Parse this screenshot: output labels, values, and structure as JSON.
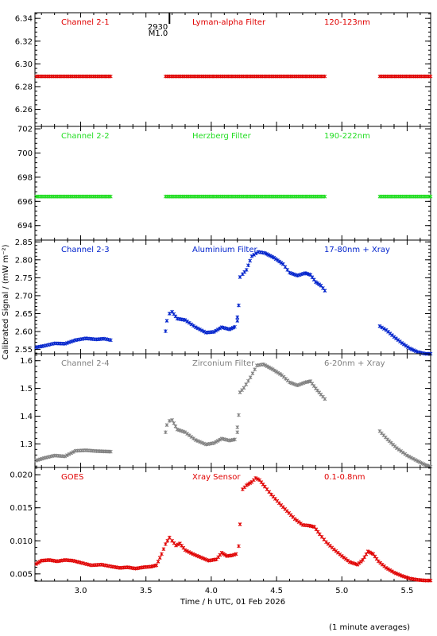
{
  "chart_data": {
    "type": "scatter",
    "shared_x": {
      "label": "Time / h UTC, 01 Feb 2026",
      "range": [
        2.65,
        5.68
      ],
      "ticks": [
        "3.0",
        "3.5",
        "4.0",
        "4.5",
        "5.0",
        "5.5"
      ],
      "tick_values": [
        3.0,
        3.5,
        4.0,
        4.5,
        5.0,
        5.5
      ]
    },
    "ylabel": "Calibrated Signal / (mW m⁻²)",
    "footnote": "(1 minute averages)",
    "event_marker": {
      "x": 3.68,
      "label_top": "2930",
      "label_bottom": "M1.0"
    },
    "panels": [
      {
        "channel": "Channel 2-1",
        "filter": "Lyman-alpha Filter",
        "band": "120-123nm",
        "color": "#e00000",
        "ylim": [
          6.245,
          6.345
        ],
        "yticks": [
          "6.26",
          "6.28",
          "6.30",
          "6.32",
          "6.34"
        ],
        "ytick_values": [
          6.26,
          6.28,
          6.3,
          6.32,
          6.34
        ],
        "segments": [
          {
            "x": [
              2.66,
              3.23
            ],
            "y": [
              6.289,
              6.289
            ]
          },
          {
            "x": [
              3.65,
              4.87
            ],
            "y": [
              6.289,
              6.289
            ]
          },
          {
            "x": [
              5.29,
              5.68
            ],
            "y": [
              6.289,
              6.289
            ]
          }
        ]
      },
      {
        "channel": "Channel 2-2",
        "filter": "Herzberg Filter",
        "band": "190-222nm",
        "color": "#22dd22",
        "ylim": [
          692.8,
          702.2
        ],
        "yticks": [
          "694",
          "696",
          "698",
          "700",
          "702"
        ],
        "ytick_values": [
          694,
          696,
          698,
          700,
          702
        ],
        "segments": [
          {
            "x": [
              2.66,
              3.23
            ],
            "y": [
              696.4,
              696.4
            ]
          },
          {
            "x": [
              3.65,
              4.87
            ],
            "y": [
              696.4,
              696.4
            ]
          },
          {
            "x": [
              5.29,
              5.68
            ],
            "y": [
              696.4,
              696.4
            ]
          }
        ]
      },
      {
        "channel": "Channel 2-3",
        "filter": "Aluminium Filter",
        "band": "17-80nm + Xray",
        "color": "#0022cc",
        "ylim": [
          2.538,
          2.855
        ],
        "yticks": [
          "2.55",
          "2.60",
          "2.65",
          "2.70",
          "2.75",
          "2.80",
          "2.85"
        ],
        "ytick_values": [
          2.55,
          2.6,
          2.65,
          2.7,
          2.75,
          2.8,
          2.85
        ],
        "segments": [
          {
            "x": [
              2.66,
              2.72,
              2.8,
              2.88,
              2.96,
              3.04,
              3.12,
              3.18,
              3.23
            ],
            "y": [
              2.556,
              2.56,
              2.567,
              2.566,
              2.576,
              2.581,
              2.578,
              2.58,
              2.576
            ]
          },
          {
            "x": [
              3.65,
              3.66,
              3.68,
              3.7,
              3.74,
              3.8,
              3.88,
              3.96,
              4.02,
              4.08,
              4.14,
              4.18,
              4.2
            ],
            "y": [
              2.601,
              2.63,
              2.65,
              2.655,
              2.636,
              2.632,
              2.612,
              2.597,
              2.599,
              2.612,
              2.606,
              2.613,
              2.63
            ]
          },
          {
            "x": [
              4.2,
              4.21,
              4.22,
              4.24,
              4.27,
              4.31,
              4.36,
              4.41,
              4.48,
              4.55,
              4.6,
              4.66,
              4.72,
              4.76,
              4.8,
              4.84,
              4.87
            ],
            "y": [
              2.64,
              2.673,
              2.752,
              2.76,
              2.772,
              2.81,
              2.822,
              2.819,
              2.806,
              2.788,
              2.764,
              2.756,
              2.763,
              2.758,
              2.738,
              2.728,
              2.714
            ]
          },
          {
            "x": [
              5.29,
              5.34,
              5.4,
              5.46,
              5.52,
              5.58,
              5.64,
              5.68
            ],
            "y": [
              2.615,
              2.604,
              2.585,
              2.568,
              2.553,
              2.543,
              2.538,
              2.538
            ]
          }
        ]
      },
      {
        "channel": "Channel 2-4",
        "filter": "Zirconium Filter",
        "band": "6-20nm + Xray",
        "color": "#808080",
        "ylim": [
          1.215,
          1.625
        ],
        "yticks": [
          "1.3",
          "1.4",
          "1.5",
          "1.6"
        ],
        "ytick_values": [
          1.3,
          1.4,
          1.5,
          1.6
        ],
        "segments": [
          {
            "x": [
              2.66,
              2.72,
              2.8,
              2.88,
              2.96,
              3.04,
              3.12,
              3.23
            ],
            "y": [
              1.24,
              1.249,
              1.258,
              1.255,
              1.275,
              1.277,
              1.274,
              1.272
            ]
          },
          {
            "x": [
              3.65,
              3.66,
              3.68,
              3.7,
              3.74,
              3.8,
              3.88,
              3.96,
              4.02,
              4.08,
              4.14,
              4.18,
              4.2
            ],
            "y": [
              1.342,
              1.368,
              1.383,
              1.386,
              1.352,
              1.342,
              1.314,
              1.298,
              1.303,
              1.319,
              1.312,
              1.316,
              1.342
            ]
          },
          {
            "x": [
              4.2,
              4.21,
              4.22,
              4.25,
              4.3,
              4.35,
              4.4,
              4.47,
              4.54,
              4.6,
              4.66,
              4.72,
              4.76,
              4.8,
              4.84,
              4.87
            ],
            "y": [
              1.36,
              1.404,
              1.486,
              1.502,
              1.54,
              1.583,
              1.587,
              1.569,
              1.548,
              1.522,
              1.511,
              1.522,
              1.526,
              1.5,
              1.478,
              1.462
            ]
          },
          {
            "x": [
              5.29,
              5.35,
              5.42,
              5.5,
              5.58,
              5.64,
              5.68
            ],
            "y": [
              1.346,
              1.316,
              1.285,
              1.258,
              1.238,
              1.224,
              1.218
            ]
          }
        ]
      },
      {
        "channel": "GOES",
        "filter": "Xray Sensor",
        "band": "0.1-0.8nm",
        "color": "#e00000",
        "ylim": [
          0.0039,
          0.0211
        ],
        "yticks": [
          "0.005",
          "0.010",
          "0.015",
          "0.020"
        ],
        "ytick_values": [
          0.005,
          0.01,
          0.015,
          0.02
        ],
        "segments": [
          {
            "x": [
              2.66,
              2.7,
              2.76,
              2.82,
              2.88,
              2.94,
              3.0,
              3.08,
              3.16,
              3.24,
              3.3,
              3.36,
              3.42,
              3.48,
              3.54,
              3.58,
              3.62,
              3.65,
              3.68,
              3.7,
              3.73,
              3.76,
              3.8,
              3.86,
              3.92,
              3.98,
              4.04,
              4.08,
              4.12,
              4.16,
              4.19,
              4.21
            ],
            "y": [
              0.0065,
              0.007,
              0.0071,
              0.0069,
              0.0071,
              0.007,
              0.0067,
              0.0063,
              0.0064,
              0.0061,
              0.0059,
              0.006,
              0.0058,
              0.006,
              0.0061,
              0.0063,
              0.008,
              0.0095,
              0.0105,
              0.01,
              0.0093,
              0.0096,
              0.0086,
              0.008,
              0.0075,
              0.007,
              0.0072,
              0.0082,
              0.0077,
              0.0078,
              0.008,
              0.0092
            ]
          },
          {
            "x": [
              4.22,
              4.24,
              4.27,
              4.31,
              4.34,
              4.37,
              4.41,
              4.46,
              4.52,
              4.58,
              4.64,
              4.7,
              4.75,
              4.79,
              4.83,
              4.88,
              4.94,
              5.0,
              5.06,
              5.12,
              5.16,
              5.2,
              5.24,
              5.28,
              5.34,
              5.4,
              5.46,
              5.52,
              5.58,
              5.64,
              5.68
            ],
            "y": [
              0.0125,
              0.0178,
              0.0184,
              0.0189,
              0.0195,
              0.0192,
              0.0182,
              0.017,
              0.0157,
              0.0145,
              0.0133,
              0.0124,
              0.0123,
              0.0121,
              0.011,
              0.0098,
              0.0087,
              0.0077,
              0.0068,
              0.0064,
              0.0071,
              0.0084,
              0.008,
              0.0069,
              0.0059,
              0.0052,
              0.0047,
              0.0043,
              0.0041,
              0.004,
              0.004
            ]
          }
        ]
      }
    ]
  }
}
